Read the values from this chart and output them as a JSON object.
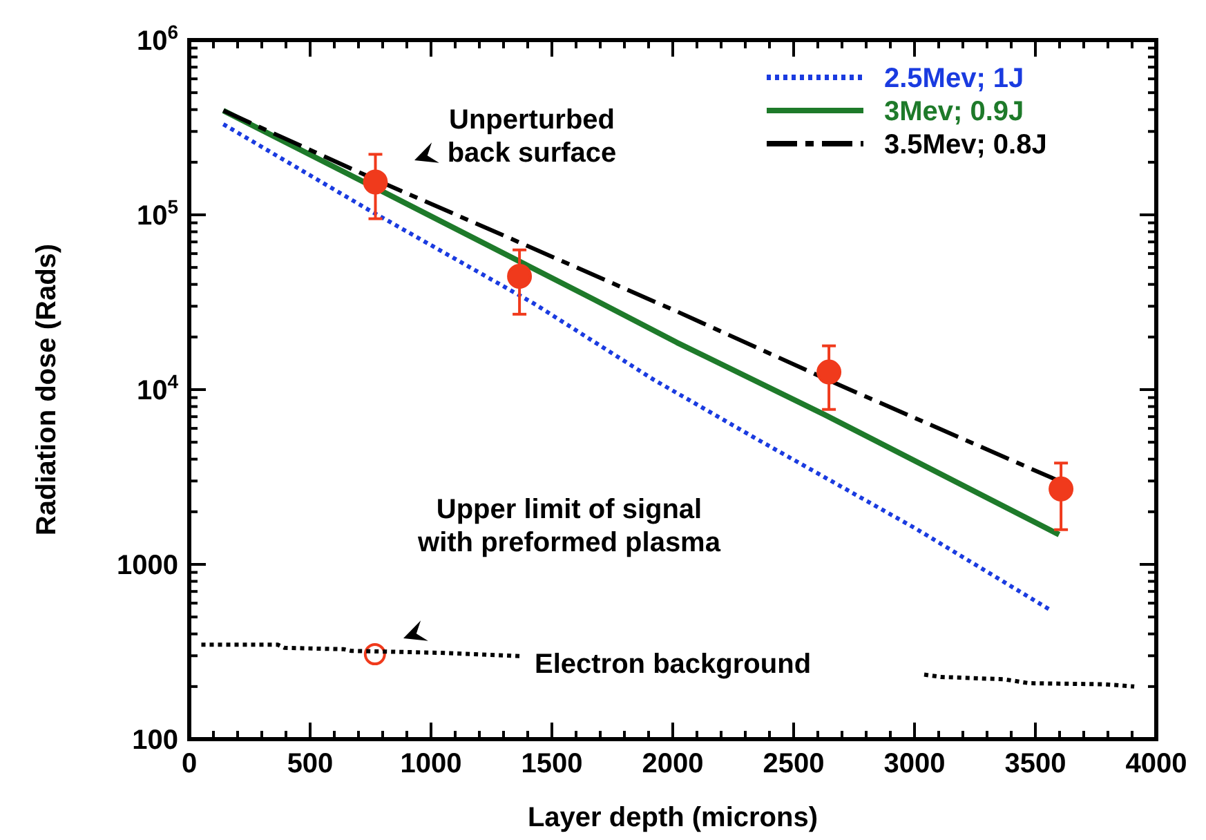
{
  "chart_data": {
    "type": "line",
    "xlabel": "Layer depth (microns)",
    "ylabel": "Radiation dose (Rads)",
    "log": "y",
    "xlim": [
      0,
      4000
    ],
    "ylim": [
      100,
      1000000
    ],
    "xticks": [
      0,
      500,
      1000,
      1500,
      2000,
      2500,
      3000,
      3500,
      4000
    ],
    "yticks": [
      100,
      1000,
      {
        "value": 10000,
        "label": "10$^{4}$"
      },
      {
        "value": 100000,
        "label": "10$^{5}$"
      },
      {
        "value": 1000000,
        "label": "10$^{6}$"
      }
    ],
    "grid": false,
    "legend": "top right",
    "series": [
      {
        "name": "2.5Mev; 1J",
        "color": "#1a3be0",
        "line_style": "dotted",
        "x": [
          141,
          741,
          1427,
          1921,
          2360,
          3006,
          3560
        ],
        "values": [
          330000,
          107000,
          31000,
          11400,
          5100,
          1600,
          550
        ]
      },
      {
        "name": "3Mev; 0.9J",
        "color": "#1e7a2a",
        "line_style": "solid",
        "x": [
          141,
          760,
          1674,
          2017,
          2627,
          3598
        ],
        "values": [
          395000,
          145000,
          32800,
          18600,
          7200,
          1480
        ]
      },
      {
        "name": "3.5Mev; 0.8J",
        "color": "#000000",
        "line_style": "dashed",
        "x": [
          141,
          770,
          1331,
          2017,
          2684,
          3598
        ],
        "values": [
          395000,
          159000,
          73000,
          28000,
          10700,
          3000
        ]
      },
      {
        "type": "scatter",
        "color": "#f03a1c",
        "marker": "circle",
        "x": [
          770,
          1366,
          2646,
          3606
        ],
        "values": [
          154000,
          44500,
          12600,
          2700
        ],
        "errors": [
          [
            95000,
            222000
          ],
          [
            27000,
            63000
          ],
          [
            7700,
            17800
          ],
          [
            1580,
            3800
          ]
        ]
      },
      {
        "type": "scatter",
        "color": "#f03a1c",
        "marker": "circle",
        "x": [
          768
        ],
        "values": [
          306
        ]
      },
      {
        "color": "#000000",
        "line_style": "dotted",
        "x": [
          50,
          366,
          394,
          640,
          669,
          1034,
          1377
        ],
        "values": [
          347,
          347,
          333,
          327,
          320,
          312,
          298
        ]
      },
      {
        "color": "#000000",
        "line_style": "dotted",
        "x": [
          3040,
          3108,
          3371,
          3474,
          3789,
          3909
        ],
        "values": [
          234,
          227,
          220,
          209,
          206,
          200
        ]
      }
    ],
    "annotations": [
      "Unperturbed\nback surface",
      "Upper limit of signal\nwith preformed plasma",
      "Electron background"
    ]
  }
}
